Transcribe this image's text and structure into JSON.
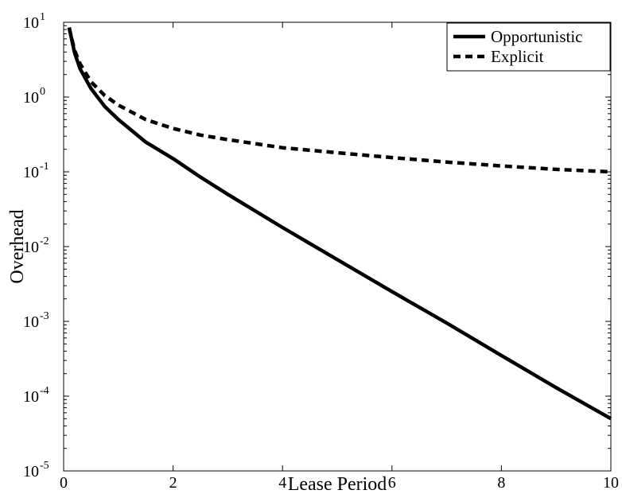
{
  "chart_data": {
    "type": "line",
    "xlabel": "Lease Period",
    "ylabel": "Overhead",
    "xlim": [
      0,
      10
    ],
    "ylim": [
      1e-05,
      10
    ],
    "yscale": "log",
    "grid": false,
    "legend_position": "top-right",
    "x_ticks": [
      "0",
      "2",
      "4",
      "6",
      "8",
      "10"
    ],
    "y_ticks": [
      {
        "base": "10",
        "exp": "-5",
        "value": 1e-05
      },
      {
        "base": "10",
        "exp": "-4",
        "value": 0.0001
      },
      {
        "base": "10",
        "exp": "-3",
        "value": 0.001
      },
      {
        "base": "10",
        "exp": "-2",
        "value": 0.01
      },
      {
        "base": "10",
        "exp": "-1",
        "value": 0.1
      },
      {
        "base": "10",
        "exp": "0",
        "value": 1
      },
      {
        "base": "10",
        "exp": "1",
        "value": 10
      }
    ],
    "series": [
      {
        "name": "Opportunistic",
        "style": "solid",
        "color": "#000000",
        "x": [
          0.1,
          0.2,
          0.3,
          0.5,
          0.75,
          1,
          1.5,
          2,
          2.5,
          3,
          4,
          5,
          6,
          7,
          8,
          9,
          10
        ],
        "y": [
          8.5,
          3.9,
          2.4,
          1.3,
          0.75,
          0.5,
          0.25,
          0.15,
          0.085,
          0.05,
          0.018,
          0.0067,
          0.0025,
          0.00095,
          0.00035,
          0.00013,
          5e-05
        ]
      },
      {
        "name": "Explicit",
        "style": "dashed",
        "color": "#000000",
        "x": [
          0.1,
          0.2,
          0.3,
          0.5,
          0.75,
          1,
          1.5,
          2,
          2.5,
          3,
          4,
          5,
          6,
          7,
          8,
          9,
          10
        ],
        "y": [
          8.5,
          4.2,
          2.8,
          1.6,
          1.05,
          0.78,
          0.5,
          0.38,
          0.31,
          0.27,
          0.21,
          0.18,
          0.155,
          0.135,
          0.12,
          0.108,
          0.1
        ]
      }
    ]
  }
}
